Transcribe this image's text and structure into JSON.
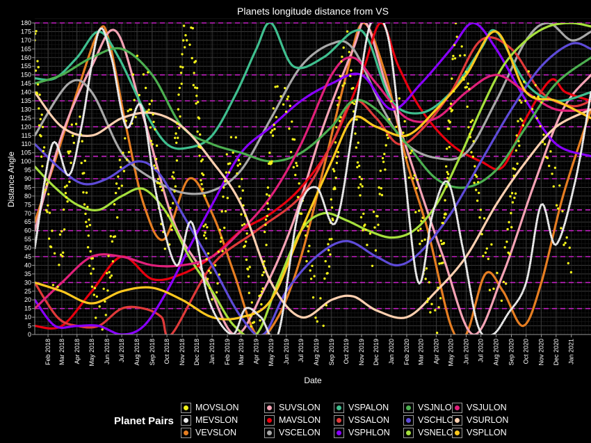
{
  "chart_data": {
    "type": "line",
    "title": "Planets longitude distance from VS",
    "xlabel": "Date",
    "ylabel": "Distance Angle",
    "ylim": [
      0,
      180
    ],
    "yticks": [
      0,
      5,
      10,
      15,
      20,
      25,
      30,
      35,
      40,
      45,
      50,
      55,
      60,
      65,
      70,
      75,
      80,
      85,
      90,
      95,
      100,
      105,
      110,
      115,
      120,
      125,
      130,
      135,
      140,
      145,
      150,
      155,
      160,
      165,
      170,
      175,
      180
    ],
    "xlim": [
      "2018-01-05",
      "2021-02-10"
    ],
    "xtick_labels": [
      "Feb 2018",
      "Mar 2018",
      "Apr 2018",
      "May 2018",
      "Jun 2018",
      "Jul 2018",
      "Aug 2018",
      "Sep 2018",
      "Oct 2018",
      "Nov 2018",
      "Dec 2018",
      "Jan 2019",
      "Feb 2019",
      "Mar 2019",
      "Apr 2019",
      "May 2019",
      "Jun 2019",
      "Jul 2019",
      "Aug 2019",
      "Sep 2019",
      "Oct 2019",
      "Nov 2019",
      "Dec 2019",
      "Jan 2020",
      "Feb 2020",
      "Mar 2020",
      "Apr 2020",
      "May 2020",
      "Jun 2020",
      "Jul 2020",
      "Aug 2020",
      "Sep 2020",
      "Oct 2020",
      "Nov 2020",
      "Dec 2020",
      "Jan 2021"
    ],
    "xtick_dates": [
      "2018-02-01",
      "2018-03-01",
      "2018-04-01",
      "2018-05-01",
      "2018-06-01",
      "2018-07-01",
      "2018-08-01",
      "2018-09-01",
      "2018-10-01",
      "2018-11-01",
      "2018-12-01",
      "2019-01-01",
      "2019-02-01",
      "2019-03-01",
      "2019-04-01",
      "2019-05-01",
      "2019-06-01",
      "2019-07-01",
      "2019-08-01",
      "2019-09-01",
      "2019-10-01",
      "2019-11-01",
      "2019-12-01",
      "2020-01-01",
      "2020-02-01",
      "2020-03-01",
      "2020-04-01",
      "2020-05-01",
      "2020-06-01",
      "2020-07-01",
      "2020-08-01",
      "2020-09-01",
      "2020-10-01",
      "2020-11-01",
      "2020-12-01",
      "2021-01-01"
    ],
    "grid": true,
    "background": "#000000",
    "reference_lines_color": "#c21fc2",
    "reference_lines_y": [
      15,
      30,
      45,
      60,
      72,
      90,
      103,
      120,
      135,
      150,
      180
    ],
    "legend": {
      "title": "Planet Pairs",
      "placement": "bottom"
    },
    "series": [
      {
        "name": "MOVSLON",
        "color": "#f2f21a",
        "style": "points",
        "x": [
          "2018-01-05",
          "2018-02-15",
          "2018-04-01",
          "2018-05-15",
          "2018-07-01",
          "2018-08-15",
          "2018-10-01",
          "2018-11-15",
          "2019-01-01",
          "2019-02-15",
          "2019-04-01",
          "2019-05-15",
          "2019-07-01",
          "2019-08-15",
          "2019-10-01",
          "2019-11-15",
          "2020-01-01",
          "2020-02-15",
          "2020-04-01",
          "2020-05-15",
          "2020-07-01",
          "2020-08-15",
          "2020-10-01",
          "2020-11-15",
          "2021-01-01"
        ],
        "y": [
          170,
          40,
          120,
          10,
          95,
          150,
          60,
          175,
          30,
          110,
          5,
          140,
          75,
          20,
          160,
          50,
          125,
          90,
          15,
          170,
          65,
          35,
          145,
          100,
          45
        ]
      },
      {
        "name": "MEVSLON",
        "color": "#e8e8e8",
        "style": "points-dense",
        "x": [
          "2018-01-05",
          "2018-02-10",
          "2018-03-15",
          "2018-04-10",
          "2018-05-15",
          "2018-06-10",
          "2018-07-10",
          "2018-08-10",
          "2018-09-10",
          "2018-10-20",
          "2018-11-20",
          "2018-12-25",
          "2019-02-10",
          "2019-03-10",
          "2019-04-10",
          "2019-05-15",
          "2019-06-25",
          "2019-08-01",
          "2019-09-10",
          "2019-10-20",
          "2019-11-20",
          "2019-12-25",
          "2020-01-25",
          "2020-02-25",
          "2020-03-25",
          "2020-04-25",
          "2020-05-25",
          "2020-06-25",
          "2020-07-25",
          "2020-08-25",
          "2020-10-01",
          "2020-11-01",
          "2020-12-01",
          "2021-01-10",
          "2021-02-10"
        ],
        "y": [
          50,
          110,
          92,
          120,
          175,
          160,
          120,
          132,
          80,
          40,
          65,
          20,
          0,
          15,
          10,
          0,
          70,
          85,
          65,
          130,
          180,
          172,
          100,
          30,
          70,
          88,
          50,
          5,
          0,
          12,
          30,
          75,
          52,
          90,
          140
        ]
      },
      {
        "name": "VEVSLON",
        "color": "#e67e22",
        "style": "line",
        "x": [
          "2018-01-05",
          "2018-02-15",
          "2018-04-01",
          "2018-05-15",
          "2018-06-05",
          "2018-07-10",
          "2018-08-15",
          "2018-09-25",
          "2018-11-15",
          "2019-01-01",
          "2019-02-15",
          "2019-04-01",
          "2019-05-15",
          "2019-07-01",
          "2019-08-15",
          "2019-10-01",
          "2019-11-05",
          "2019-12-20",
          "2020-02-01",
          "2020-03-15",
          "2020-05-01",
          "2020-06-01",
          "2020-07-10",
          "2020-08-15",
          "2020-09-25",
          "2020-11-01",
          "2020-12-15",
          "2021-02-10"
        ],
        "y": [
          65,
          100,
          140,
          175,
          170,
          120,
          75,
          55,
          90,
          70,
          35,
          0,
          10,
          45,
          95,
          150,
          180,
          150,
          100,
          60,
          5,
          0,
          35,
          25,
          5,
          30,
          80,
          130
        ]
      },
      {
        "name": "SUVSLON",
        "color": "#f5a3b5",
        "style": "line",
        "x": [
          "2018-01-05",
          "2018-03-01",
          "2018-05-01",
          "2018-06-20",
          "2018-08-15",
          "2018-10-15",
          "2018-12-15",
          "2019-02-15",
          "2019-04-15",
          "2019-06-15",
          "2019-08-15",
          "2019-10-15",
          "2019-11-10",
          "2019-12-20",
          "2020-02-15",
          "2020-04-15",
          "2020-06-15",
          "2020-08-15",
          "2020-10-15",
          "2020-12-15",
          "2021-02-10"
        ],
        "y": [
          60,
          115,
          155,
          175,
          125,
          65,
          35,
          0,
          25,
          65,
          120,
          165,
          180,
          145,
          95,
          45,
          0,
          35,
          85,
          130,
          150
        ]
      },
      {
        "name": "MAVSLON",
        "color": "#e8000f",
        "style": "line",
        "x": [
          "2018-01-05",
          "2018-03-01",
          "2018-05-01",
          "2018-07-01",
          "2018-09-01",
          "2018-11-01",
          "2019-01-01",
          "2019-03-01",
          "2019-05-01",
          "2019-07-01",
          "2019-09-01",
          "2019-11-01",
          "2019-12-10",
          "2020-01-15",
          "2020-03-01",
          "2020-05-01",
          "2020-07-01",
          "2020-08-15",
          "2020-10-01",
          "2020-11-20",
          "2020-12-20",
          "2021-02-10"
        ],
        "y": [
          5,
          5,
          25,
          45,
          32,
          35,
          45,
          60,
          70,
          85,
          110,
          150,
          180,
          155,
          130,
          110,
          100,
          97,
          125,
          147,
          140,
          135
        ]
      },
      {
        "name": "VSCELON",
        "color": "#a8a8a8",
        "style": "line",
        "x": [
          "2018-01-05",
          "2018-03-15",
          "2018-05-01",
          "2018-07-01",
          "2018-09-01",
          "2018-11-01",
          "2019-01-01",
          "2019-03-01",
          "2019-05-01",
          "2019-07-01",
          "2019-09-01",
          "2019-10-15",
          "2019-12-15",
          "2020-02-01",
          "2020-04-01",
          "2020-06-01",
          "2020-08-01",
          "2020-10-01",
          "2020-11-15",
          "2021-01-01",
          "2021-02-10"
        ],
        "y": [
          115,
          145,
          140,
          105,
          90,
          82,
          83,
          95,
          125,
          155,
          168,
          165,
          130,
          110,
          102,
          105,
          135,
          170,
          180,
          170,
          175
        ]
      },
      {
        "name": "VSPALON",
        "color": "#3fbf8f",
        "style": "line",
        "x": [
          "2018-01-05",
          "2018-02-15",
          "2018-04-01",
          "2018-05-15",
          "2018-06-25",
          "2018-08-15",
          "2018-10-01",
          "2018-11-15",
          "2019-01-01",
          "2019-02-20",
          "2019-04-01",
          "2019-05-01",
          "2019-06-15",
          "2019-08-15",
          "2019-10-15",
          "2019-11-15",
          "2020-01-01",
          "2020-03-01",
          "2020-05-01",
          "2020-07-01",
          "2020-08-01",
          "2020-10-01",
          "2020-12-01",
          "2021-02-10"
        ],
        "y": [
          148,
          148,
          160,
          175,
          160,
          130,
          110,
          108,
          115,
          140,
          165,
          180,
          155,
          160,
          175,
          170,
          135,
          128,
          140,
          165,
          175,
          145,
          135,
          140
        ]
      },
      {
        "name": "VSSALON",
        "color": "#e03a3a",
        "style": "line",
        "x": [
          "2018-01-05",
          "2018-02-20",
          "2018-04-01",
          "2018-05-15",
          "2018-07-01",
          "2018-08-15",
          "2018-09-20",
          "2018-10-10",
          "2019-01-01",
          "2019-04-01",
          "2019-07-01",
          "2019-09-01",
          "2019-10-15",
          "2019-12-01",
          "2020-01-15",
          "2020-03-01",
          "2020-05-01",
          "2020-07-01",
          "2020-09-01",
          "2020-11-01",
          "2021-01-01",
          "2021-02-10"
        ],
        "y": [
          30,
          10,
          5,
          5,
          15,
          15,
          10,
          0,
          40,
          60,
          80,
          110,
          135,
          125,
          110,
          118,
          140,
          170,
          165,
          140,
          132,
          135
        ]
      },
      {
        "name": "VSPHLON",
        "color": "#8800ff",
        "style": "line",
        "x": [
          "2018-01-05",
          "2018-02-15",
          "2018-04-01",
          "2018-05-15",
          "2018-07-01",
          "2018-08-15",
          "2018-10-01",
          "2018-11-15",
          "2019-01-01",
          "2019-03-01",
          "2019-05-01",
          "2019-07-01",
          "2019-09-01",
          "2019-11-01",
          "2020-01-01",
          "2020-03-01",
          "2020-05-01",
          "2020-06-15",
          "2020-08-01",
          "2020-10-01",
          "2020-12-01",
          "2021-02-10"
        ],
        "y": [
          20,
          5,
          5,
          5,
          0,
          5,
          25,
          50,
          75,
          105,
          120,
          135,
          145,
          150,
          130,
          145,
          165,
          180,
          165,
          135,
          110,
          103
        ]
      },
      {
        "name": "VSJNLON",
        "color": "#4caf50",
        "style": "line",
        "x": [
          "2018-01-05",
          "2018-03-01",
          "2018-05-01",
          "2018-07-01",
          "2018-09-01",
          "2018-11-01",
          "2019-01-01",
          "2019-03-01",
          "2019-05-01",
          "2019-07-01",
          "2019-09-01",
          "2019-10-15",
          "2019-12-01",
          "2020-02-01",
          "2020-04-01",
          "2020-06-01",
          "2020-08-01",
          "2020-10-01",
          "2020-12-01",
          "2021-02-10"
        ],
        "y": [
          145,
          150,
          160,
          165,
          150,
          120,
          110,
          105,
          100,
          105,
          120,
          135,
          130,
          110,
          90,
          85,
          95,
          120,
          145,
          160
        ]
      },
      {
        "name": "VSCHLON",
        "color": "#5e4bd8",
        "style": "line",
        "x": [
          "2018-01-05",
          "2018-03-01",
          "2018-04-15",
          "2018-06-01",
          "2018-08-01",
          "2018-09-15",
          "2018-11-01",
          "2019-01-01",
          "2019-03-01",
          "2019-04-15",
          "2019-06-01",
          "2019-08-01",
          "2019-10-01",
          "2019-12-01",
          "2020-01-15",
          "2020-03-01",
          "2020-05-01",
          "2020-07-01",
          "2020-09-01",
          "2020-11-01",
          "2021-01-01",
          "2021-02-10"
        ],
        "y": [
          110,
          95,
          87,
          90,
          100,
          93,
          70,
          40,
          10,
          0,
          25,
          45,
          54,
          45,
          40,
          48,
          70,
          100,
          130,
          155,
          168,
          165
        ]
      },
      {
        "name": "VSNELON",
        "color": "#a6e03c",
        "style": "line",
        "x": [
          "2018-01-05",
          "2018-02-15",
          "2018-04-01",
          "2018-05-15",
          "2018-07-01",
          "2018-08-15",
          "2018-10-01",
          "2018-11-15",
          "2019-01-01",
          "2019-02-15",
          "2019-04-01",
          "2019-05-15",
          "2019-07-01",
          "2019-08-15",
          "2019-10-01",
          "2019-11-15",
          "2020-01-01",
          "2020-02-15",
          "2020-04-01",
          "2020-05-15",
          "2020-07-01",
          "2020-08-15",
          "2020-10-01",
          "2020-11-15",
          "2021-01-01",
          "2021-02-10"
        ],
        "y": [
          97,
          85,
          75,
          72,
          80,
          84,
          70,
          45,
          25,
          5,
          0,
          30,
          60,
          70,
          66,
          60,
          56,
          60,
          75,
          100,
          130,
          155,
          170,
          178,
          180,
          178
        ]
      },
      {
        "name": "VSJULON",
        "color": "#e0207a",
        "style": "line",
        "x": [
          "2018-01-05",
          "2018-03-01",
          "2018-05-01",
          "2018-07-01",
          "2018-09-01",
          "2018-11-01",
          "2019-01-01",
          "2019-03-01",
          "2019-05-01",
          "2019-07-01",
          "2019-09-01",
          "2019-10-15",
          "2019-12-01",
          "2020-02-01",
          "2020-04-01",
          "2020-06-01",
          "2020-08-01",
          "2020-10-01",
          "2020-12-01",
          "2021-02-10"
        ],
        "y": [
          15,
          30,
          45,
          45,
          40,
          40,
          45,
          60,
          80,
          110,
          150,
          160,
          145,
          125,
          125,
          140,
          150,
          140,
          130,
          130
        ]
      },
      {
        "name": "VSURLON",
        "color": "#ffd0b0",
        "style": "line",
        "x": [
          "2018-01-05",
          "2018-03-01",
          "2018-05-01",
          "2018-07-01",
          "2018-09-01",
          "2018-11-01",
          "2019-01-01",
          "2019-03-01",
          "2019-05-01",
          "2019-07-01",
          "2019-09-01",
          "2019-10-15",
          "2019-12-01",
          "2020-02-01",
          "2020-04-01",
          "2020-06-01",
          "2020-08-01",
          "2020-10-01",
          "2020-12-01",
          "2021-02-10"
        ],
        "y": [
          140,
          120,
          115,
          125,
          128,
          120,
          100,
          75,
          30,
          10,
          20,
          22,
          14,
          10,
          25,
          45,
          75,
          100,
          120,
          130
        ]
      },
      {
        "name": "VSPLLON",
        "color": "#ffc81e",
        "style": "line",
        "x": [
          "2018-01-05",
          "2018-03-01",
          "2018-05-01",
          "2018-07-01",
          "2018-09-01",
          "2018-11-01",
          "2019-01-01",
          "2019-03-01",
          "2019-05-01",
          "2019-07-01",
          "2019-09-01",
          "2019-10-15",
          "2019-12-01",
          "2020-02-01",
          "2020-04-01",
          "2020-06-01",
          "2020-08-01",
          "2020-10-01",
          "2020-12-01",
          "2021-02-10"
        ],
        "y": [
          30,
          25,
          18,
          25,
          27,
          20,
          10,
          10,
          20,
          60,
          100,
          125,
          120,
          115,
          130,
          150,
          175,
          140,
          135,
          125
        ]
      }
    ]
  }
}
